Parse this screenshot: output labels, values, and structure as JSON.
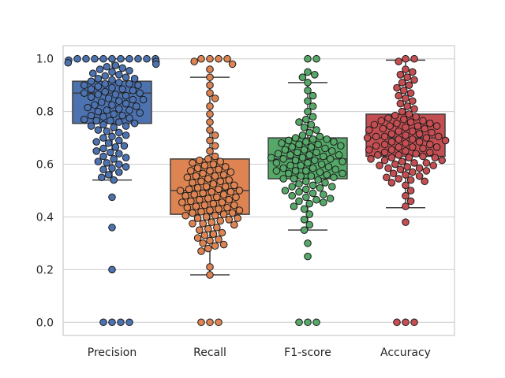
{
  "chart_data": {
    "type": "box-swarm",
    "title": "",
    "xlabel": "",
    "ylabel": "",
    "ylim": [
      -0.05,
      1.05
    ],
    "yticks": [
      0.0,
      0.2,
      0.4,
      0.6,
      0.8,
      1.0
    ],
    "ytick_labels": [
      "0.0",
      "0.2",
      "0.4",
      "0.6",
      "0.8",
      "1.0"
    ],
    "grid": true,
    "categories": [
      "Precision",
      "Recall",
      "F1-score",
      "Accuracy"
    ],
    "colors": [
      "#4c72b0",
      "#dd8452",
      "#55a868",
      "#c44e52"
    ],
    "boxes": [
      {
        "name": "Precision",
        "whisker_low": 0.54,
        "q1": 0.755,
        "median": 0.87,
        "q3": 0.915,
        "whisker_high": 1.0
      },
      {
        "name": "Recall",
        "whisker_low": 0.18,
        "q1": 0.41,
        "median": 0.5,
        "q3": 0.62,
        "whisker_high": 0.93
      },
      {
        "name": "F1-score",
        "whisker_low": 0.35,
        "q1": 0.545,
        "median": 0.62,
        "q3": 0.7,
        "whisker_high": 0.91
      },
      {
        "name": "Accuracy",
        "whisker_low": 0.435,
        "q1": 0.63,
        "median": 0.7,
        "q3": 0.79,
        "whisker_high": 0.995
      }
    ],
    "series": [
      {
        "name": "Precision",
        "values": [
          1.0,
          1.0,
          1.0,
          1.0,
          1.0,
          1.0,
          1.0,
          1.0,
          1.0,
          1.0,
          0.995,
          0.99,
          0.985,
          0.98,
          0.975,
          0.97,
          0.965,
          0.96,
          0.955,
          0.95,
          0.945,
          0.94,
          0.935,
          0.93,
          0.925,
          0.92,
          0.915,
          0.91,
          0.905,
          0.9,
          0.9,
          0.895,
          0.89,
          0.885,
          0.88,
          0.875,
          0.87,
          0.87,
          0.865,
          0.86,
          0.855,
          0.85,
          0.845,
          0.84,
          0.835,
          0.83,
          0.825,
          0.82,
          0.815,
          0.81,
          0.805,
          0.8,
          0.795,
          0.79,
          0.785,
          0.78,
          0.775,
          0.77,
          0.765,
          0.76,
          0.755,
          0.75,
          0.745,
          0.74,
          0.73,
          0.72,
          0.71,
          0.7,
          0.69,
          0.68,
          0.67,
          0.66,
          0.65,
          0.64,
          0.63,
          0.62,
          0.61,
          0.6,
          0.59,
          0.58,
          0.57,
          0.56,
          0.55,
          0.54,
          0.475,
          0.36,
          0.2,
          0.0,
          0.0,
          0.0,
          0.0,
          0.925,
          0.905,
          0.885,
          0.865,
          0.845,
          0.825,
          0.805,
          0.785,
          0.765,
          0.745,
          0.725,
          0.705,
          0.685,
          0.665,
          0.645,
          0.625,
          0.605,
          0.585
        ]
      },
      {
        "name": "Recall",
        "values": [
          1.0,
          1.0,
          1.0,
          1.0,
          0.99,
          0.98,
          0.96,
          0.93,
          0.9,
          0.87,
          0.85,
          0.82,
          0.79,
          0.76,
          0.73,
          0.71,
          0.69,
          0.67,
          0.65,
          0.63,
          0.62,
          0.615,
          0.61,
          0.605,
          0.6,
          0.595,
          0.59,
          0.585,
          0.58,
          0.575,
          0.57,
          0.565,
          0.56,
          0.555,
          0.55,
          0.545,
          0.54,
          0.535,
          0.53,
          0.525,
          0.52,
          0.515,
          0.51,
          0.505,
          0.5,
          0.5,
          0.495,
          0.49,
          0.485,
          0.48,
          0.475,
          0.47,
          0.465,
          0.46,
          0.455,
          0.45,
          0.445,
          0.44,
          0.435,
          0.43,
          0.425,
          0.42,
          0.415,
          0.41,
          0.405,
          0.4,
          0.395,
          0.39,
          0.385,
          0.38,
          0.375,
          0.37,
          0.36,
          0.35,
          0.34,
          0.33,
          0.32,
          0.31,
          0.3,
          0.29,
          0.28,
          0.27,
          0.21,
          0.18,
          0.0,
          0.0,
          0.0,
          0.575,
          0.555,
          0.535,
          0.515,
          0.495,
          0.475,
          0.455,
          0.435,
          0.415,
          0.395,
          0.375,
          0.355,
          0.335,
          0.315,
          0.295,
          0.505,
          0.485,
          0.465,
          0.445,
          0.425,
          0.405
        ]
      },
      {
        "name": "F1-score",
        "values": [
          1.0,
          1.0,
          0.95,
          0.94,
          0.93,
          0.91,
          0.88,
          0.86,
          0.84,
          0.82,
          0.8,
          0.78,
          0.77,
          0.76,
          0.75,
          0.74,
          0.73,
          0.72,
          0.71,
          0.705,
          0.7,
          0.695,
          0.69,
          0.685,
          0.68,
          0.675,
          0.67,
          0.665,
          0.66,
          0.655,
          0.65,
          0.645,
          0.64,
          0.635,
          0.63,
          0.625,
          0.62,
          0.62,
          0.615,
          0.61,
          0.605,
          0.6,
          0.595,
          0.59,
          0.585,
          0.58,
          0.575,
          0.57,
          0.565,
          0.56,
          0.555,
          0.55,
          0.545,
          0.54,
          0.53,
          0.52,
          0.51,
          0.5,
          0.49,
          0.48,
          0.47,
          0.46,
          0.45,
          0.44,
          0.43,
          0.41,
          0.39,
          0.37,
          0.35,
          0.3,
          0.25,
          0.0,
          0.0,
          0.0,
          0.685,
          0.665,
          0.645,
          0.625,
          0.605,
          0.585,
          0.565,
          0.545,
          0.525,
          0.505,
          0.485,
          0.465,
          0.675,
          0.655,
          0.635,
          0.615,
          0.595,
          0.575,
          0.555,
          0.535,
          0.515,
          0.495,
          0.475,
          0.455,
          0.695,
          0.635,
          0.575,
          0.515
        ]
      },
      {
        "name": "Accuracy",
        "values": [
          1.0,
          1.0,
          0.99,
          0.96,
          0.95,
          0.94,
          0.93,
          0.92,
          0.91,
          0.9,
          0.89,
          0.88,
          0.87,
          0.86,
          0.85,
          0.84,
          0.83,
          0.82,
          0.81,
          0.8,
          0.79,
          0.785,
          0.78,
          0.775,
          0.77,
          0.765,
          0.76,
          0.755,
          0.75,
          0.745,
          0.74,
          0.735,
          0.73,
          0.725,
          0.72,
          0.715,
          0.71,
          0.705,
          0.7,
          0.7,
          0.695,
          0.69,
          0.685,
          0.68,
          0.675,
          0.67,
          0.665,
          0.66,
          0.655,
          0.65,
          0.645,
          0.64,
          0.635,
          0.63,
          0.625,
          0.62,
          0.615,
          0.61,
          0.605,
          0.6,
          0.595,
          0.59,
          0.585,
          0.58,
          0.57,
          0.56,
          0.55,
          0.54,
          0.53,
          0.52,
          0.5,
          0.48,
          0.46,
          0.44,
          0.38,
          0.0,
          0.0,
          0.0,
          0.765,
          0.745,
          0.725,
          0.705,
          0.685,
          0.665,
          0.645,
          0.625,
          0.605,
          0.585,
          0.565,
          0.545,
          0.755,
          0.735,
          0.715,
          0.695,
          0.675,
          0.655,
          0.635,
          0.615,
          0.595,
          0.575,
          0.555,
          0.535,
          0.745,
          0.705,
          0.665,
          0.625
        ]
      }
    ]
  }
}
